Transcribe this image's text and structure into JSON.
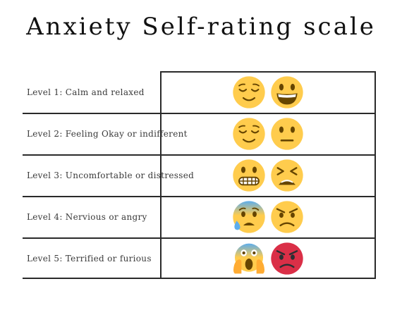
{
  "title": "Anxiety Self-rating scale",
  "levels": [
    {
      "label": "Level 1: Calm and relaxed",
      "emojis": [
        "relieved-face-icon",
        "grinning-face-icon"
      ]
    },
    {
      "label": "Level 2: Feeling Okay or indifferent",
      "emojis": [
        "relieved-face-icon",
        "neutral-face-icon"
      ]
    },
    {
      "label": "Level 3: Uncomfortable or distressed",
      "emojis": [
        "grimacing-face-icon",
        "tired-face-icon"
      ]
    },
    {
      "label": "Level 4: Nervious or angry",
      "emojis": [
        "anxious-sweat-face-icon",
        "angry-face-icon"
      ]
    },
    {
      "label": "Level 5: Terrified or furious",
      "emojis": [
        "screaming-face-icon",
        "pouting-red-face-icon"
      ]
    }
  ],
  "colors": {
    "emoji_yellow": "#FFCC4D",
    "emoji_feature": "#664500",
    "fear_blue": "#5DADEC",
    "sweat_blue": "#5DADEC",
    "rage_red": "#DA2F47"
  }
}
